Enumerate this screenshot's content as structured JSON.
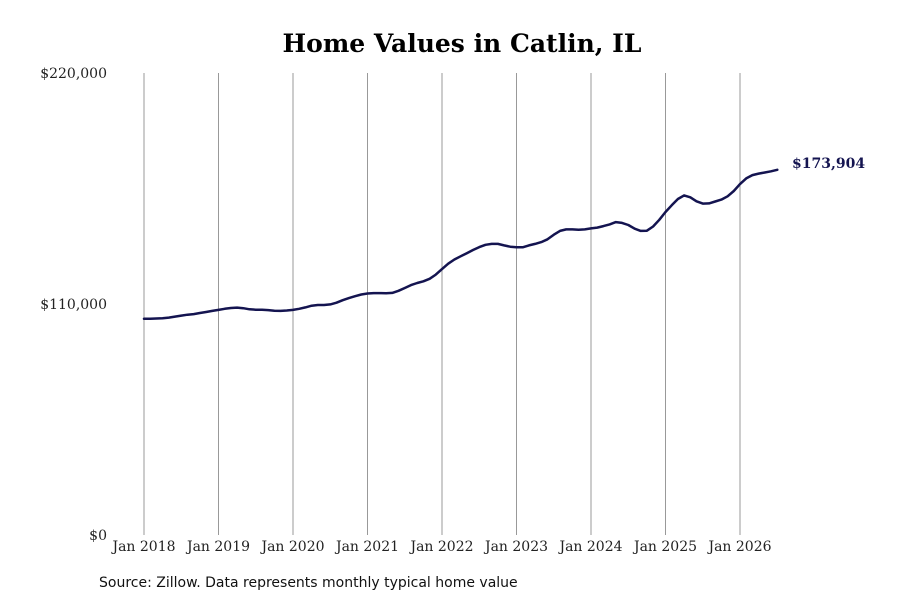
{
  "chart_data": {
    "type": "line",
    "title": "Home Values in Catlin, IL",
    "source": "Source: Zillow. Data represents monthly typical home value",
    "end_label": "$173,904",
    "ylim": [
      0,
      220000
    ],
    "xlim": [
      "2018-01",
      "2026-07"
    ],
    "y_ticks": [
      {
        "value": 0,
        "label": "$0"
      },
      {
        "value": 110000,
        "label": "$110,000"
      },
      {
        "value": 220000,
        "label": "$220,000"
      }
    ],
    "x_ticks": [
      {
        "date": "2018-01",
        "label": "Jan 2018"
      },
      {
        "date": "2019-01",
        "label": "Jan 2019"
      },
      {
        "date": "2020-01",
        "label": "Jan 2020"
      },
      {
        "date": "2021-01",
        "label": "Jan 2021"
      },
      {
        "date": "2022-01",
        "label": "Jan 2022"
      },
      {
        "date": "2023-01",
        "label": "Jan 2023"
      },
      {
        "date": "2024-01",
        "label": "Jan 2024"
      },
      {
        "date": "2025-01",
        "label": "Jan 2025"
      },
      {
        "date": "2026-01",
        "label": "Jan 2026"
      }
    ],
    "grid": "vertical-at-ticks",
    "line_color": "#141450",
    "series": [
      {
        "points": [
          [
            "2018-01",
            103000
          ],
          [
            "2018-02",
            103000
          ],
          [
            "2018-03",
            103100
          ],
          [
            "2018-04",
            103200
          ],
          [
            "2018-05",
            103500
          ],
          [
            "2018-06",
            104000
          ],
          [
            "2018-07",
            104500
          ],
          [
            "2018-08",
            104900
          ],
          [
            "2018-09",
            105200
          ],
          [
            "2018-10",
            105700
          ],
          [
            "2018-11",
            106200
          ],
          [
            "2018-12",
            106700
          ],
          [
            "2019-01",
            107200
          ],
          [
            "2019-02",
            107700
          ],
          [
            "2019-03",
            108100
          ],
          [
            "2019-04",
            108300
          ],
          [
            "2019-05",
            108000
          ],
          [
            "2019-06",
            107500
          ],
          [
            "2019-07",
            107300
          ],
          [
            "2019-08",
            107300
          ],
          [
            "2019-09",
            107100
          ],
          [
            "2019-10",
            106800
          ],
          [
            "2019-11",
            106700
          ],
          [
            "2019-12",
            106900
          ],
          [
            "2020-01",
            107200
          ],
          [
            "2020-02",
            107700
          ],
          [
            "2020-03",
            108400
          ],
          [
            "2020-04",
            109200
          ],
          [
            "2020-05",
            109500
          ],
          [
            "2020-06",
            109500
          ],
          [
            "2020-07",
            109800
          ],
          [
            "2020-08",
            110600
          ],
          [
            "2020-09",
            111800
          ],
          [
            "2020-10",
            112800
          ],
          [
            "2020-11",
            113700
          ],
          [
            "2020-12",
            114500
          ],
          [
            "2021-01",
            115000
          ],
          [
            "2021-02",
            115200
          ],
          [
            "2021-03",
            115200
          ],
          [
            "2021-04",
            115100
          ],
          [
            "2021-05",
            115300
          ],
          [
            "2021-06",
            116300
          ],
          [
            "2021-07",
            117600
          ],
          [
            "2021-08",
            119000
          ],
          [
            "2021-09",
            120000
          ],
          [
            "2021-10",
            120800
          ],
          [
            "2021-11",
            122000
          ],
          [
            "2021-12",
            124000
          ],
          [
            "2022-01",
            126600
          ],
          [
            "2022-02",
            129200
          ],
          [
            "2022-03",
            131200
          ],
          [
            "2022-04",
            132700
          ],
          [
            "2022-05",
            134200
          ],
          [
            "2022-06",
            135700
          ],
          [
            "2022-07",
            137100
          ],
          [
            "2022-08",
            138200
          ],
          [
            "2022-09",
            138600
          ],
          [
            "2022-10",
            138600
          ],
          [
            "2022-11",
            137900
          ],
          [
            "2022-12",
            137300
          ],
          [
            "2023-01",
            137000
          ],
          [
            "2023-02",
            137000
          ],
          [
            "2023-03",
            137900
          ],
          [
            "2023-04",
            138600
          ],
          [
            "2023-05",
            139500
          ],
          [
            "2023-06",
            140800
          ],
          [
            "2023-07",
            143000
          ],
          [
            "2023-08",
            144800
          ],
          [
            "2023-09",
            145500
          ],
          [
            "2023-10",
            145500
          ],
          [
            "2023-11",
            145400
          ],
          [
            "2023-12",
            145500
          ],
          [
            "2024-01",
            146000
          ],
          [
            "2024-02",
            146400
          ],
          [
            "2024-03",
            147100
          ],
          [
            "2024-04",
            147900
          ],
          [
            "2024-05",
            149000
          ],
          [
            "2024-06",
            148600
          ],
          [
            "2024-07",
            147600
          ],
          [
            "2024-08",
            145900
          ],
          [
            "2024-09",
            144800
          ],
          [
            "2024-10",
            144900
          ],
          [
            "2024-11",
            146900
          ],
          [
            "2024-12",
            150100
          ],
          [
            "2025-01",
            153800
          ],
          [
            "2025-02",
            157000
          ],
          [
            "2025-03",
            160000
          ],
          [
            "2025-04",
            161700
          ],
          [
            "2025-05",
            160800
          ],
          [
            "2025-06",
            158900
          ],
          [
            "2025-07",
            157800
          ],
          [
            "2025-08",
            157900
          ],
          [
            "2025-09",
            158800
          ],
          [
            "2025-10",
            159700
          ],
          [
            "2025-11",
            161300
          ],
          [
            "2025-12",
            163800
          ],
          [
            "2026-01",
            167100
          ],
          [
            "2026-02",
            169800
          ],
          [
            "2026-03",
            171400
          ],
          [
            "2026-04",
            172100
          ],
          [
            "2026-05",
            172600
          ],
          [
            "2026-06",
            173200
          ],
          [
            "2026-07",
            173904
          ]
        ]
      }
    ]
  }
}
